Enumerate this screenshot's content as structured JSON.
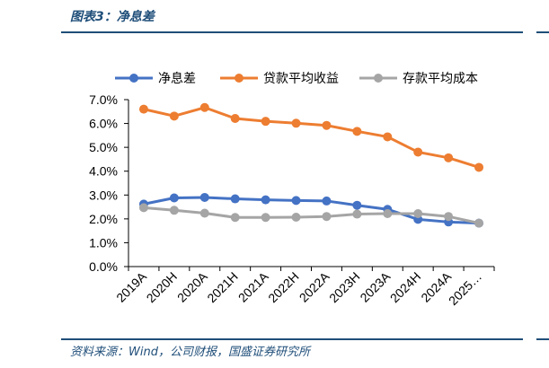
{
  "figure": {
    "title": "图表3：净息差",
    "source": "资料来源：Wind，公司财报，国盛证券研究所"
  },
  "chart_data": {
    "type": "line",
    "categories": [
      "2019A",
      "2020H",
      "2020A",
      "2021H",
      "2021A",
      "2022H",
      "2022A",
      "2023H",
      "2023A",
      "2024H",
      "2024A",
      "2025…"
    ],
    "ylim": [
      0,
      7
    ],
    "yticks": [
      "0.0%",
      "1.0%",
      "2.0%",
      "3.0%",
      "4.0%",
      "5.0%",
      "6.0%",
      "7.0%"
    ],
    "legend_position": "top",
    "grid": false,
    "series": [
      {
        "name": "净息差",
        "color": "#4472c4",
        "values": [
          2.62,
          2.88,
          2.9,
          2.84,
          2.8,
          2.77,
          2.75,
          2.57,
          2.4,
          1.98,
          1.87,
          1.82
        ]
      },
      {
        "name": "贷款平均收益",
        "color": "#ed7d31",
        "values": [
          6.6,
          6.31,
          6.67,
          6.21,
          6.09,
          6.01,
          5.92,
          5.67,
          5.44,
          4.8,
          4.56,
          4.16
        ]
      },
      {
        "name": "存款平均成本",
        "color": "#a5a5a5",
        "values": [
          2.47,
          2.36,
          2.24,
          2.06,
          2.06,
          2.07,
          2.1,
          2.2,
          2.22,
          2.22,
          2.1,
          1.82
        ]
      }
    ]
  }
}
